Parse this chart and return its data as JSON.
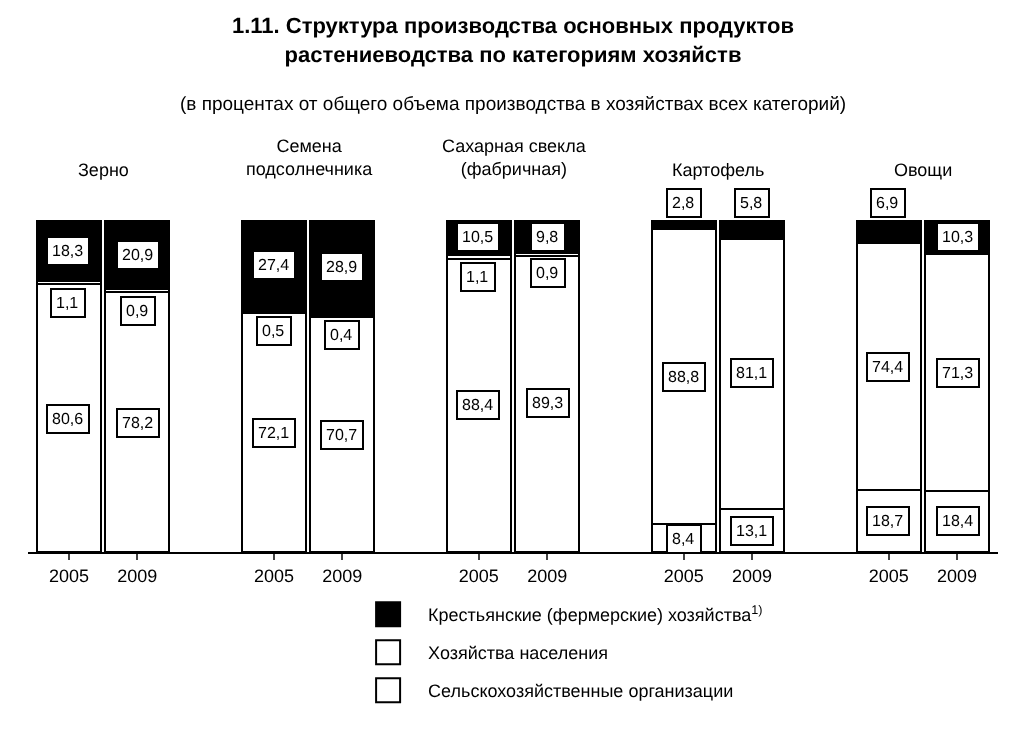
{
  "chart_data": {
    "type": "bar",
    "stacked": true,
    "title": "1.11. Структура производства основных продуктов растениеводства по категориям хозяйств",
    "subtitle": "(в процентах от общего объема производства в хозяйствах всех категорий)",
    "annotations": [
      "Зерно",
      "Семена подсолнечника",
      "Сахарная свекла (фабричная)",
      "Картофель",
      "Овощи"
    ],
    "categories": [
      "2005",
      "2009",
      "2005",
      "2009",
      "2005",
      "2009",
      "2005",
      "2009",
      "2005",
      "2009"
    ],
    "series": [
      {
        "name": "Сельскохозяйственные организации",
        "color": "#ffffff",
        "values": [
          80.6,
          78.2,
          72.1,
          70.7,
          88.4,
          89.3,
          8.4,
          13.1,
          18.7,
          18.4
        ],
        "value_labels": [
          "80,6",
          "78,2",
          "72,1",
          "70,7",
          "88,4",
          "89,3",
          "8,4",
          "13,1",
          "18,7",
          "18,4"
        ]
      },
      {
        "name": "Хозяйства населения",
        "color": "#ffffff",
        "values": [
          1.1,
          0.9,
          0.5,
          0.4,
          1.1,
          0.9,
          88.8,
          81.1,
          74.4,
          71.3
        ],
        "value_labels": [
          "1,1",
          "0,9",
          "0,5",
          "0,4",
          "1,1",
          "0,9",
          "88,8",
          "81,1",
          "74,4",
          "71,3"
        ]
      },
      {
        "name": "Крестьянские (фермерские) хозяйства$^{1)}$",
        "color": "#000000",
        "values": [
          18.3,
          20.9,
          27.4,
          28.9,
          10.5,
          9.8,
          2.8,
          5.8,
          6.9,
          10.3
        ],
        "value_labels": [
          "18,3",
          "20,9",
          "27,4",
          "28,9",
          "10,5",
          "9,8",
          "2,8",
          "5,8",
          "6,9",
          "10,3"
        ]
      }
    ],
    "legend": "bottom"
  }
}
